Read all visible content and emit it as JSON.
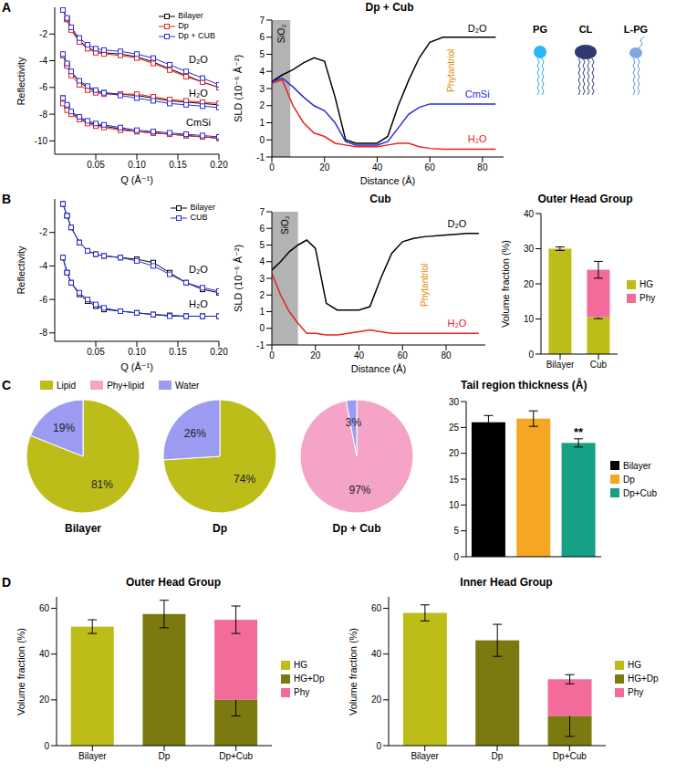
{
  "chart_data": [
    {
      "type": "line",
      "panel": "A",
      "x_label": "Q (Å⁻¹)",
      "y_label": "Reflectivity",
      "xlim": [
        0,
        0.2
      ],
      "xticks": [
        0.05,
        {
          "value": 0.1,
          "label": "0.10"
        },
        0.15,
        {
          "value": 0.2,
          "label": "0.20"
        }
      ],
      "ylim": [
        -11,
        0
      ],
      "yticks": [
        -10,
        -8,
        -6,
        -4,
        -2
      ],
      "marker": "square",
      "legend": "top-right",
      "x": [
        0.01,
        0.015,
        0.02,
        0.03,
        0.04,
        0.05,
        0.06,
        0.08,
        0.1,
        0.12,
        0.14,
        0.16,
        0.18,
        0.2
      ],
      "series": [
        {
          "name": "Bilayer",
          "color": "#000000",
          "values": [
            -0.2,
            -0.9,
            -1.6,
            -2.5,
            -3.0,
            -3.3,
            -3.4,
            -3.5,
            -3.7,
            -4.1,
            -4.6,
            -5.1,
            -5.6,
            -6.0
          ]
        },
        {
          "name": "Dp",
          "color": "#e8231c",
          "values": [
            -0.2,
            -0.9,
            -1.7,
            -2.6,
            -3.1,
            -3.4,
            -3.5,
            -3.6,
            -3.8,
            -4.2,
            -4.7,
            -5.2,
            -5.6,
            -6.0
          ]
        },
        {
          "name": "Dp + CUB",
          "color": "#2b2bd6",
          "values": [
            -0.2,
            -0.8,
            -1.5,
            -2.3,
            -2.8,
            -3.1,
            -3.2,
            -3.3,
            -3.5,
            -3.8,
            -4.3,
            -4.8,
            -5.3,
            -5.8
          ]
        },
        {
          "name": "Bilayer",
          "color": "#000000",
          "values": [
            -3.6,
            -4.3,
            -4.9,
            -5.6,
            -6.0,
            -6.3,
            -6.4,
            -6.5,
            -6.6,
            -6.8,
            -7.0,
            -7.1,
            -7.2,
            -7.3
          ]
        },
        {
          "name": "Dp",
          "color": "#e8231c",
          "values": [
            -3.6,
            -4.4,
            -5.1,
            -5.8,
            -6.2,
            -6.4,
            -6.5,
            -6.5,
            -6.5,
            -6.7,
            -6.9,
            -7.0,
            -7.1,
            -7.2
          ]
        },
        {
          "name": "Dp + CUB",
          "color": "#2b2bd6",
          "values": [
            -3.5,
            -4.2,
            -4.8,
            -5.5,
            -5.9,
            -6.2,
            -6.4,
            -6.6,
            -6.8,
            -7.0,
            -7.2,
            -7.3,
            -7.4,
            -7.5
          ]
        },
        {
          "name": "Bilayer",
          "color": "#000000",
          "values": [
            -6.8,
            -7.4,
            -7.9,
            -8.3,
            -8.6,
            -8.8,
            -8.9,
            -9.1,
            -9.3,
            -9.4,
            -9.5,
            -9.6,
            -9.7,
            -9.8
          ]
        },
        {
          "name": "Dp",
          "color": "#e8231c",
          "values": [
            -7.2,
            -7.7,
            -8.0,
            -8.4,
            -8.7,
            -8.9,
            -9.0,
            -9.2,
            -9.3,
            -9.4,
            -9.5,
            -9.6,
            -9.7,
            -9.8
          ]
        },
        {
          "name": "Dp + CUB",
          "color": "#2b2bd6",
          "values": [
            -6.8,
            -7.3,
            -7.8,
            -8.2,
            -8.5,
            -8.7,
            -8.8,
            -9.0,
            -9.2,
            -9.3,
            -9.4,
            -9.5,
            -9.6,
            -9.7
          ]
        }
      ],
      "annotations": [
        {
          "text": "D₂O",
          "x": 0.175,
          "y": -3.9
        },
        {
          "text": "H₂O",
          "x": 0.175,
          "y": -6.4
        },
        {
          "text": "CmSi",
          "x": 0.175,
          "y": -8.6
        }
      ]
    },
    {
      "type": "line",
      "title": "Dp + Cub",
      "x_label": "Distance (Å)",
      "y_label": "SLD (10⁻⁶ Å⁻²)",
      "xlim": [
        0,
        88
      ],
      "xticks": [
        0,
        20,
        40,
        60,
        80
      ],
      "ylim": [
        -1,
        7
      ],
      "yticks": [
        -1,
        0,
        1,
        2,
        3,
        4,
        5,
        6,
        7
      ],
      "x": [
        0,
        4,
        8,
        12,
        16,
        20,
        24,
        28,
        32,
        36,
        40,
        44,
        48,
        52,
        56,
        60,
        65,
        70,
        75,
        80,
        85
      ],
      "series": [
        {
          "name": "D₂O",
          "color": "#000000",
          "label_at": [
            78,
            6.5
          ],
          "values": [
            3.4,
            3.8,
            4.1,
            4.5,
            4.8,
            4.6,
            2.5,
            0.0,
            -0.2,
            -0.2,
            -0.2,
            0.2,
            2.0,
            3.5,
            4.8,
            5.7,
            6.0,
            6.0,
            6.0,
            6.0,
            6.0
          ]
        },
        {
          "name": "CmSi",
          "color": "#2b2bd6",
          "label_at": [
            78,
            2.7
          ],
          "values": [
            3.4,
            3.6,
            3.1,
            2.5,
            2.0,
            1.7,
            1.0,
            -0.1,
            -0.3,
            -0.3,
            -0.3,
            -0.1,
            0.7,
            1.5,
            1.9,
            2.1,
            2.1,
            2.1,
            2.1,
            2.1,
            2.1
          ]
        },
        {
          "name": "H₂O",
          "color": "#e8231c",
          "label_at": [
            78,
            0.05
          ],
          "values": [
            3.3,
            3.5,
            2.0,
            1.0,
            0.4,
            0.2,
            -0.2,
            -0.3,
            -0.4,
            -0.4,
            -0.4,
            -0.3,
            -0.2,
            -0.2,
            -0.4,
            -0.5,
            -0.55,
            -0.55,
            -0.55,
            -0.55,
            -0.55
          ]
        }
      ],
      "band": {
        "label": "SiO₂",
        "x": [
          0,
          7
        ],
        "label_at": [
          3.5,
          6.2
        ]
      },
      "annotations": [
        {
          "text": "Phytantriol",
          "x": 68,
          "y": 4.05,
          "color": "#e08a00"
        }
      ]
    },
    {
      "type": "line",
      "panel": "B",
      "x_label": "Q (Å⁻¹)",
      "y_label": "Reflectivity",
      "xlim": [
        0,
        0.2
      ],
      "xticks": [
        0.05,
        {
          "value": 0.1,
          "label": "0.10"
        },
        0.15,
        {
          "value": 0.2,
          "label": "0.20"
        }
      ],
      "ylim": [
        -8.5,
        0
      ],
      "yticks": [
        -8,
        -6,
        -4,
        -2
      ],
      "marker": "square",
      "legend": "top-right",
      "x": [
        0.01,
        0.015,
        0.02,
        0.03,
        0.04,
        0.05,
        0.06,
        0.08,
        0.1,
        0.12,
        0.14,
        0.16,
        0.18,
        0.2
      ],
      "series": [
        {
          "name": "Bilayer",
          "color": "#000000",
          "values": [
            -0.3,
            -1.0,
            -1.7,
            -2.6,
            -3.1,
            -3.3,
            -3.4,
            -3.5,
            -3.6,
            -3.8,
            -4.4,
            -5.0,
            -5.4,
            -5.6
          ]
        },
        {
          "name": "CUB",
          "color": "#2b2bd6",
          "values": [
            -0.3,
            -1.0,
            -1.7,
            -2.6,
            -3.1,
            -3.3,
            -3.4,
            -3.5,
            -3.7,
            -4.0,
            -4.5,
            -5.0,
            -5.3,
            -5.5
          ]
        },
        {
          "name": "Bilayer",
          "color": "#000000",
          "values": [
            -3.5,
            -4.4,
            -5.0,
            -5.7,
            -6.1,
            -6.4,
            -6.6,
            -6.7,
            -6.8,
            -6.9,
            -6.95,
            -7.0,
            -7.0,
            -7.0
          ]
        },
        {
          "name": "CUB",
          "color": "#2b2bd6",
          "values": [
            -3.5,
            -4.4,
            -5.0,
            -5.6,
            -6.0,
            -6.3,
            -6.5,
            -6.7,
            -6.8,
            -6.9,
            -7.0,
            -7.0,
            -7.0,
            -7.0
          ]
        }
      ],
      "annotations": [
        {
          "text": "D₂O",
          "x": 0.175,
          "y": -4.2
        },
        {
          "text": "H₂O",
          "x": 0.175,
          "y": -6.25
        }
      ]
    },
    {
      "type": "line",
      "title": "Cub",
      "x_label": "Distance (Å)",
      "y_label": "SLD (10⁻⁶ Å⁻²)",
      "xlim": [
        0,
        98
      ],
      "xticks": [
        0,
        20,
        40,
        60,
        80
      ],
      "ylim": [
        -1,
        7
      ],
      "yticks": [
        -1,
        0,
        1,
        2,
        3,
        4,
        5,
        6,
        7
      ],
      "x": [
        0,
        4,
        8,
        12,
        16,
        20,
        25,
        30,
        35,
        40,
        45,
        50,
        55,
        60,
        65,
        70,
        80,
        90,
        95
      ],
      "series": [
        {
          "name": "D₂O",
          "color": "#000000",
          "label_at": [
            85,
            6.3
          ],
          "values": [
            3.5,
            4.0,
            4.6,
            5.0,
            5.3,
            4.8,
            1.5,
            1.1,
            1.1,
            1.1,
            1.3,
            3.0,
            4.5,
            5.2,
            5.4,
            5.5,
            5.6,
            5.7,
            5.7
          ]
        },
        {
          "name": "H₂O",
          "color": "#e8231c",
          "label_at": [
            85,
            0.3
          ],
          "values": [
            3.3,
            2.0,
            1.0,
            0.3,
            -0.3,
            -0.3,
            -0.4,
            -0.4,
            -0.3,
            -0.2,
            -0.1,
            -0.2,
            -0.3,
            -0.3,
            -0.3,
            -0.3,
            -0.3,
            -0.3,
            -0.3
          ]
        }
      ],
      "band": {
        "label": "SiO₂",
        "x": [
          0,
          12
        ],
        "label_at": [
          6,
          6.2
        ]
      },
      "annotations": [
        {
          "text": "Phytantriol",
          "x": 70,
          "y": 2.6,
          "color": "#e08a00"
        }
      ]
    },
    {
      "type": "bar",
      "stacked": true,
      "title": "Outer Head Group",
      "y_label": "Volume fraction (%)",
      "categories": [
        "Bilayer",
        "Cub"
      ],
      "ylim": [
        0,
        40
      ],
      "yticks": [
        0,
        10,
        20,
        30,
        40
      ],
      "legend": "right",
      "series": [
        {
          "name": "HG",
          "color": "#bdbd1a",
          "values": [
            30,
            10.5
          ],
          "errors": [
            0.5,
            0.4
          ]
        },
        {
          "name": "Phy",
          "color": "#f26b9a",
          "values": [
            null,
            13.5
          ],
          "errors": [
            null,
            2.4
          ]
        }
      ]
    },
    {
      "type": "pie",
      "panel": "C",
      "legend": "top",
      "data_labels": true,
      "legend_entries": [
        {
          "name": "Lipid",
          "color": "#bdbd1a"
        },
        {
          "name": "Phy+lipid",
          "color": "#f5a3c7"
        },
        {
          "name": "Water",
          "color": "#9b9bf2"
        }
      ],
      "pies": [
        {
          "title": "Bilayer",
          "categories": [
            "Lipid",
            "Water"
          ],
          "values": [
            81,
            19
          ],
          "value_labels": [
            "81%",
            "19%"
          ]
        },
        {
          "title": "Dp",
          "categories": [
            "Lipid",
            "Water"
          ],
          "values": [
            74,
            26
          ],
          "value_labels": [
            "74%",
            "26%"
          ]
        },
        {
          "title": "Dp + Cub",
          "categories": [
            "Phy+lipid",
            "Water"
          ],
          "values": [
            97,
            3
          ],
          "value_labels": [
            "97%",
            "3%"
          ]
        }
      ]
    },
    {
      "type": "bar",
      "title": "Tail region thickness (Å)",
      "categories": [
        "Bilayer",
        "Dp",
        "Dp+Cub"
      ],
      "values": [
        26,
        26.7,
        22
      ],
      "errors": [
        1.3,
        1.5,
        0.8
      ],
      "colors": [
        "#000000",
        "#f5a623",
        "#16a085"
      ],
      "ylim": [
        0,
        30
      ],
      "yticks": [
        0,
        5,
        10,
        15,
        20,
        25,
        30
      ],
      "legend": "right",
      "tick_labels": "y",
      "annotations": [
        {
          "text": "**",
          "category": "Dp+Cub"
        }
      ]
    },
    {
      "type": "bar",
      "stacked": true,
      "panel": "D",
      "title": "Outer Head Group",
      "y_label": "Volume fraction (%)",
      "categories": [
        "Bilayer",
        "Dp",
        "Dp+Cub"
      ],
      "ylim": [
        0,
        65
      ],
      "yticks": [
        0,
        20,
        40,
        60
      ],
      "legend": "right",
      "series": [
        {
          "name": "HG",
          "color": "#bdbd1a",
          "values": [
            52,
            null,
            null
          ],
          "errors": [
            3,
            null,
            null
          ]
        },
        {
          "name": "HG+Dp",
          "color": "#7a7a10",
          "values": [
            null,
            57.5,
            20
          ],
          "errors": [
            null,
            6,
            7
          ]
        },
        {
          "name": "Phy",
          "color": "#f26b9a",
          "values": [
            null,
            null,
            35
          ],
          "errors": [
            null,
            null,
            6
          ]
        }
      ]
    },
    {
      "type": "bar",
      "stacked": true,
      "title": "Inner Head Group",
      "y_label": "Volume fraction (%)",
      "categories": [
        "Bilayer",
        "Dp",
        "Dp+Cub"
      ],
      "ylim": [
        0,
        65
      ],
      "yticks": [
        0,
        20,
        40,
        60
      ],
      "legend": "right",
      "series": [
        {
          "name": "HG",
          "color": "#bdbd1a",
          "values": [
            58,
            null,
            null
          ],
          "errors": [
            3.5,
            null,
            null
          ]
        },
        {
          "name": "HG+Dp",
          "color": "#7a7a10",
          "values": [
            null,
            46,
            13
          ],
          "errors": [
            null,
            7,
            9
          ]
        },
        {
          "name": "Phy",
          "color": "#f26b9a",
          "values": [
            null,
            null,
            16
          ],
          "errors": [
            null,
            null,
            2
          ]
        }
      ]
    }
  ],
  "lipid_key": {
    "labels": [
      "PG",
      "CL",
      "L-PG"
    ]
  }
}
